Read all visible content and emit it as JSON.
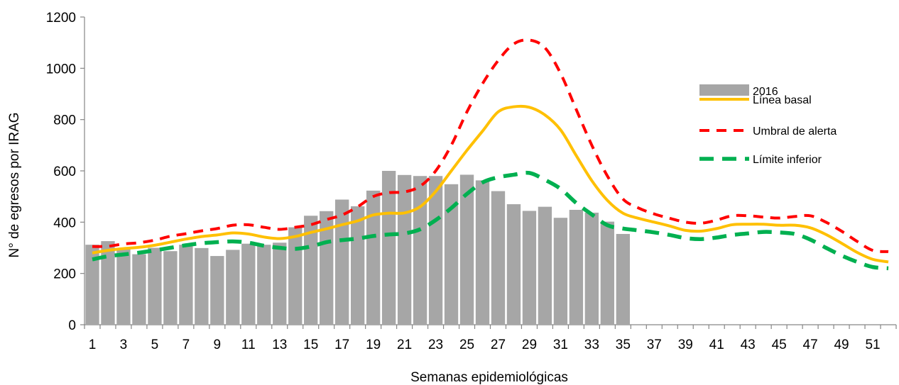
{
  "chart_data": {
    "type": "bar",
    "xlabel": "Semanas epidemiológicas",
    "ylabel": "N° de egresos por IRAG",
    "ylim": [
      0,
      1200
    ],
    "yticks": [
      0,
      200,
      400,
      600,
      800,
      1000,
      1200
    ],
    "xlim": [
      1,
      52
    ],
    "xtick_labels": [
      1,
      3,
      5,
      7,
      9,
      11,
      13,
      15,
      17,
      19,
      21,
      23,
      25,
      27,
      29,
      31,
      33,
      35,
      37,
      39,
      41,
      43,
      45,
      47,
      49,
      51
    ],
    "legend_position": "right",
    "bar_series": {
      "name": "2016",
      "color": "#a6a6a6",
      "weeks": [
        1,
        2,
        3,
        4,
        5,
        6,
        7,
        8,
        9,
        10,
        11,
        12,
        13,
        14,
        15,
        16,
        17,
        18,
        19,
        20,
        21,
        22,
        23,
        24,
        25,
        26,
        27,
        28,
        29,
        30,
        31,
        32,
        33,
        34,
        35
      ],
      "values": [
        312,
        326,
        297,
        275,
        300,
        287,
        312,
        299,
        268,
        292,
        316,
        312,
        320,
        380,
        425,
        443,
        488,
        462,
        523,
        600,
        584,
        580,
        580,
        548,
        585,
        563,
        521,
        470,
        444,
        460,
        417,
        448,
        437,
        402,
        354
      ]
    },
    "line_series": [
      {
        "name": "Línea basal",
        "color": "#ffc000",
        "style": "solid",
        "weeks": [
          1,
          2,
          3,
          4,
          5,
          6,
          7,
          8,
          9,
          10,
          11,
          12,
          13,
          14,
          15,
          16,
          17,
          18,
          19,
          20,
          21,
          22,
          23,
          24,
          25,
          26,
          27,
          28,
          29,
          30,
          31,
          32,
          33,
          34,
          35,
          36,
          37,
          38,
          39,
          40,
          41,
          42,
          43,
          44,
          45,
          46,
          47,
          48,
          49,
          50,
          51,
          52
        ],
        "values": [
          280,
          290,
          297,
          302,
          310,
          322,
          334,
          344,
          350,
          358,
          354,
          342,
          336,
          344,
          360,
          374,
          390,
          405,
          428,
          435,
          436,
          460,
          520,
          600,
          680,
          755,
          830,
          850,
          848,
          818,
          760,
          660,
          562,
          485,
          435,
          415,
          400,
          385,
          368,
          365,
          375,
          390,
          392,
          392,
          388,
          388,
          378,
          352,
          318,
          282,
          255,
          245
        ]
      },
      {
        "name": "Umbral de alerta",
        "color": "#ff0000",
        "style": "dash",
        "weeks": [
          1,
          2,
          3,
          4,
          5,
          6,
          7,
          8,
          9,
          10,
          11,
          12,
          13,
          14,
          15,
          16,
          17,
          18,
          19,
          20,
          21,
          22,
          23,
          24,
          25,
          26,
          27,
          28,
          29,
          30,
          31,
          32,
          33,
          34,
          35,
          36,
          37,
          38,
          39,
          40,
          41,
          42,
          43,
          44,
          45,
          46,
          47,
          48,
          49,
          50,
          51,
          52
        ],
        "values": [
          305,
          306,
          315,
          320,
          330,
          345,
          355,
          366,
          375,
          388,
          390,
          380,
          372,
          380,
          390,
          410,
          428,
          460,
          500,
          515,
          518,
          540,
          600,
          700,
          830,
          940,
          1030,
          1095,
          1110,
          1080,
          980,
          840,
          700,
          580,
          490,
          455,
          432,
          415,
          400,
          396,
          408,
          425,
          425,
          420,
          416,
          422,
          425,
          400,
          365,
          325,
          290,
          285
        ]
      },
      {
        "name": "Límite inferior",
        "color": "#00b050",
        "style": "dash",
        "weeks": [
          1,
          2,
          3,
          4,
          5,
          6,
          7,
          8,
          9,
          10,
          11,
          12,
          13,
          14,
          15,
          16,
          17,
          18,
          19,
          20,
          21,
          22,
          23,
          24,
          25,
          26,
          27,
          28,
          29,
          30,
          31,
          32,
          33,
          34,
          35,
          36,
          37,
          38,
          39,
          40,
          41,
          42,
          43,
          44,
          45,
          46,
          47,
          48,
          49,
          50,
          51,
          52
        ],
        "values": [
          255,
          267,
          274,
          281,
          290,
          300,
          310,
          318,
          322,
          325,
          320,
          308,
          300,
          296,
          305,
          322,
          330,
          336,
          346,
          352,
          356,
          372,
          408,
          455,
          510,
          555,
          575,
          585,
          592,
          565,
          530,
          475,
          430,
          388,
          375,
          368,
          360,
          350,
          338,
          334,
          340,
          350,
          356,
          362,
          360,
          354,
          332,
          300,
          270,
          245,
          225,
          220
        ]
      }
    ]
  }
}
